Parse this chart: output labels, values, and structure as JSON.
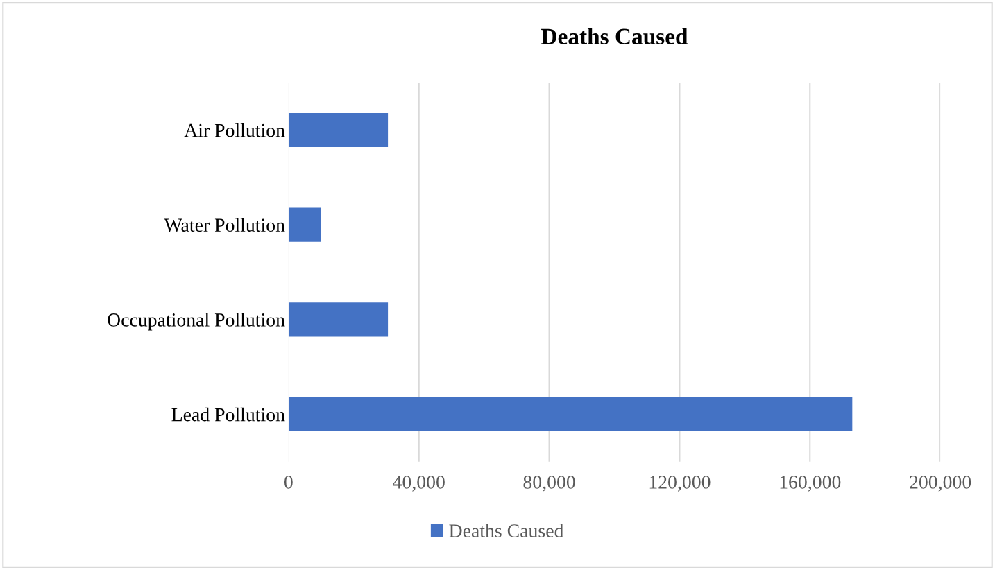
{
  "chart_data": {
    "type": "bar",
    "orientation": "horizontal",
    "title": "Deaths Caused",
    "categories": [
      "Air Pollution",
      "Water Pollution",
      "Occupational Pollution",
      "Lead Pollution"
    ],
    "series": [
      {
        "name": "Deaths Caused",
        "color": "#4472c4",
        "values": [
          30500,
          10000,
          30500,
          173000
        ]
      }
    ],
    "xlim": [
      0,
      200000
    ],
    "xticks": [
      {
        "value": 0,
        "label": "0"
      },
      {
        "value": 40000,
        "label": "40,000"
      },
      {
        "value": 80000,
        "label": "80,000"
      },
      {
        "value": 120000,
        "label": "120,000"
      },
      {
        "value": 160000,
        "label": "160,000"
      },
      {
        "value": 200000,
        "label": "200,000"
      }
    ],
    "grid": "x",
    "legend": "bottom"
  }
}
